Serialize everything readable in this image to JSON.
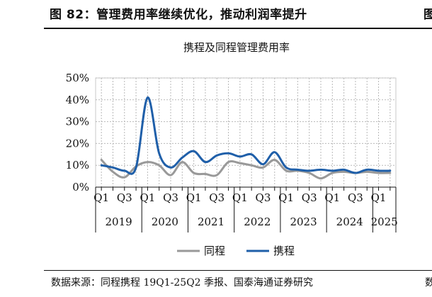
{
  "figure": {
    "title": "图 82：管理费用率继续优化，推动利润率提升",
    "title_right_fragment": "图",
    "source": "数据来源：同程携程 19Q1-25Q2 季报、国泰海通证券研究",
    "source_right_fragment": "数"
  },
  "chart_data": {
    "type": "line",
    "title": "携程及同程管理费用率",
    "ylim": [
      0,
      50
    ],
    "yticks": [
      "0%",
      "10%",
      "20%",
      "30%",
      "40%",
      "50%"
    ],
    "grid": "dotted",
    "legend_position": "bottom",
    "quarter_labels": [
      "Q1",
      "Q3",
      "Q1",
      "Q3",
      "Q1",
      "Q3",
      "Q1",
      "Q3",
      "Q1",
      "Q3",
      "Q1",
      "Q3",
      "Q1"
    ],
    "year_labels": [
      "2019",
      "2020",
      "2021",
      "2022",
      "2023",
      "2024",
      "2025"
    ],
    "x": [
      "2019Q1",
      "2019Q2",
      "2019Q3",
      "2019Q4",
      "2020Q1",
      "2020Q2",
      "2020Q3",
      "2020Q4",
      "2021Q1",
      "2021Q2",
      "2021Q3",
      "2021Q4",
      "2022Q1",
      "2022Q2",
      "2022Q3",
      "2022Q4",
      "2023Q1",
      "2023Q2",
      "2023Q3",
      "2023Q4",
      "2024Q1",
      "2024Q2",
      "2024Q3",
      "2024Q4",
      "2025Q1",
      "2025Q2"
    ],
    "series": [
      {
        "name": "同程",
        "color": "#999999",
        "values": [
          12.5,
          7.0,
          4.5,
          9.5,
          11.5,
          10.0,
          5.5,
          11.5,
          6.5,
          6.0,
          5.5,
          11.5,
          11.0,
          10.0,
          9.0,
          12.5,
          7.5,
          7.5,
          6.5,
          4.0,
          6.5,
          7.0,
          6.5,
          7.0,
          6.5,
          6.5
        ]
      },
      {
        "name": "携程",
        "color": "#1f5fa9",
        "values": [
          10.0,
          9.0,
          7.5,
          9.0,
          41.0,
          15.5,
          9.0,
          13.5,
          16.5,
          11.5,
          14.5,
          15.5,
          14.0,
          15.0,
          10.5,
          16.0,
          9.0,
          8.0,
          7.5,
          8.0,
          7.5,
          8.0,
          6.5,
          8.0,
          7.5,
          7.5
        ]
      }
    ]
  }
}
